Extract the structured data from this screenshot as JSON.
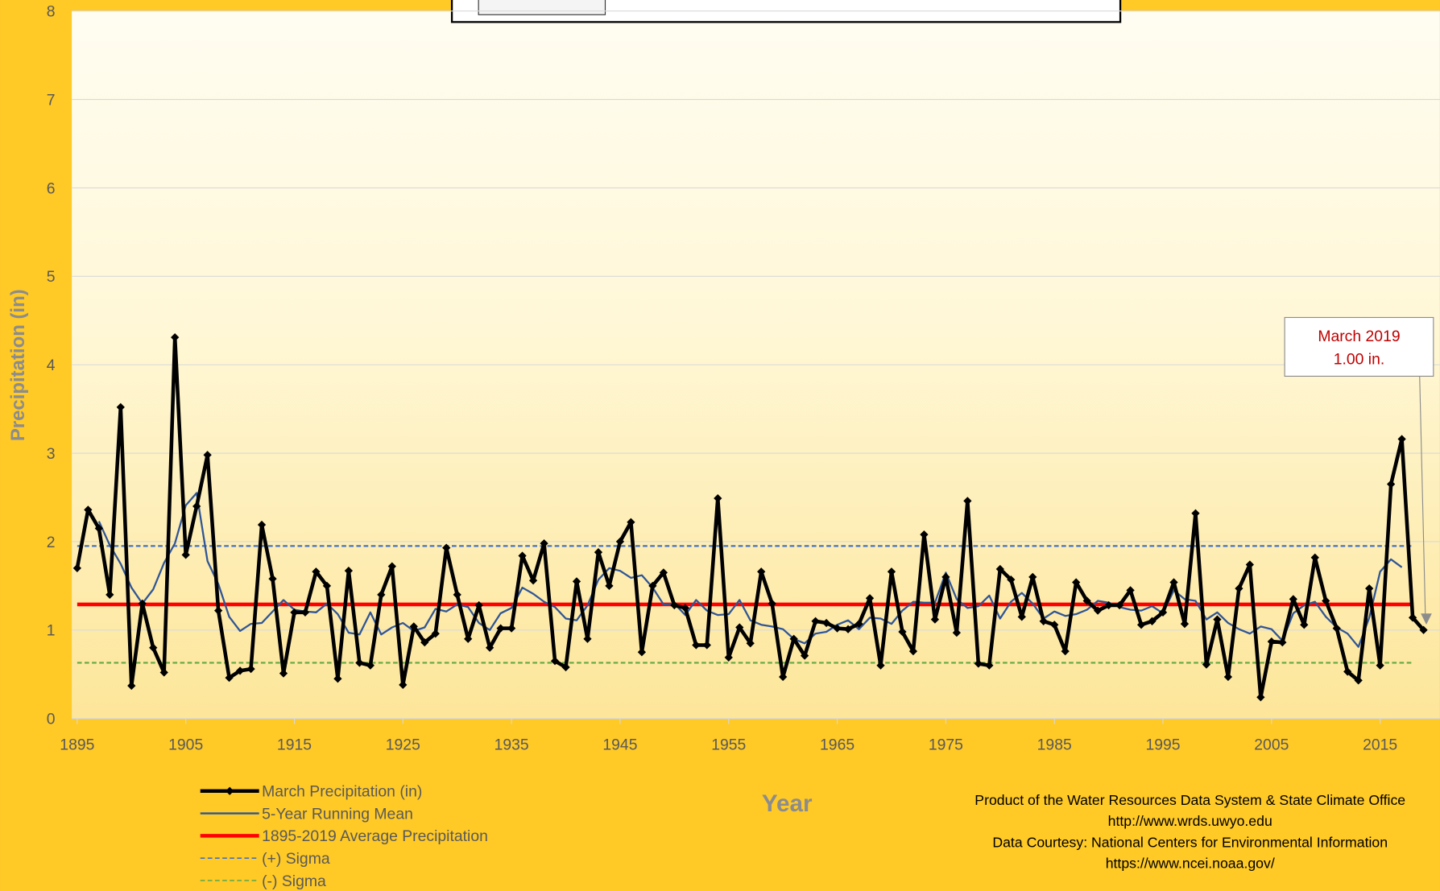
{
  "chart_data": {
    "type": "line",
    "x": [
      1895,
      1896,
      1897,
      1898,
      1899,
      1900,
      1901,
      1902,
      1903,
      1904,
      1905,
      1906,
      1907,
      1908,
      1909,
      1910,
      1911,
      1912,
      1913,
      1914,
      1915,
      1916,
      1917,
      1918,
      1919,
      1920,
      1921,
      1922,
      1923,
      1924,
      1925,
      1926,
      1927,
      1928,
      1929,
      1930,
      1931,
      1932,
      1933,
      1934,
      1935,
      1936,
      1937,
      1938,
      1939,
      1940,
      1941,
      1942,
      1943,
      1944,
      1945,
      1946,
      1947,
      1948,
      1949,
      1950,
      1951,
      1952,
      1953,
      1954,
      1955,
      1956,
      1957,
      1958,
      1959,
      1960,
      1961,
      1962,
      1963,
      1964,
      1965,
      1966,
      1967,
      1968,
      1969,
      1970,
      1971,
      1972,
      1973,
      1974,
      1975,
      1976,
      1977,
      1978,
      1979,
      1980,
      1981,
      1982,
      1983,
      1984,
      1985,
      1986,
      1987,
      1988,
      1989,
      1990,
      1991,
      1992,
      1993,
      1994,
      1995,
      1996,
      1997,
      1998,
      1999,
      2000,
      2001,
      2002,
      2003,
      2004,
      2005,
      2006,
      2007,
      2008,
      2009,
      2010,
      2011,
      2012,
      2013,
      2014,
      2015,
      2016,
      2017,
      2018,
      2019
    ],
    "series": [
      {
        "name": "March Precipitation (in)",
        "color": "#000000",
        "markers": true,
        "values": [
          1.7,
          2.36,
          2.15,
          1.4,
          3.52,
          0.37,
          1.3,
          0.8,
          0.52,
          4.31,
          1.85,
          2.4,
          2.98,
          1.22,
          0.46,
          0.54,
          0.56,
          2.19,
          1.58,
          0.51,
          1.2,
          1.2,
          1.66,
          1.5,
          0.45,
          1.67,
          0.63,
          0.6,
          1.4,
          1.72,
          0.38,
          1.04,
          0.86,
          0.96,
          1.93,
          1.4,
          0.9,
          1.28,
          0.8,
          1.02,
          1.02,
          1.84,
          1.56,
          1.98,
          0.65,
          0.58,
          1.55,
          0.9,
          1.88,
          1.5,
          2.0,
          2.22,
          0.75,
          1.5,
          1.65,
          1.28,
          1.25,
          0.83,
          0.83,
          2.49,
          0.69,
          1.03,
          0.85,
          1.66,
          1.3,
          0.47,
          0.9,
          0.71,
          1.1,
          1.08,
          1.02,
          1.01,
          1.07,
          1.36,
          0.6,
          1.66,
          0.98,
          0.76,
          2.08,
          1.12,
          1.6,
          0.97,
          2.46,
          0.62,
          0.6,
          1.69,
          1.57,
          1.15,
          1.6,
          1.1,
          1.06,
          0.76,
          1.54,
          1.33,
          1.22,
          1.28,
          1.28,
          1.45,
          1.06,
          1.1,
          1.2,
          1.54,
          1.07,
          2.32,
          0.61,
          1.12,
          0.47,
          1.47,
          1.74,
          0.24,
          0.87,
          0.86,
          1.35,
          1.06,
          1.82,
          1.33,
          1.02,
          0.53,
          0.43,
          1.47,
          0.6,
          2.65,
          3.16,
          1.14,
          1.0
        ]
      },
      {
        "name": "5-Year Running Mean",
        "color": "#2f5597",
        "values": [
          null,
          null,
          2.23,
          1.96,
          1.75,
          1.48,
          1.3,
          1.46,
          1.76,
          1.98,
          2.41,
          2.55,
          1.78,
          1.52,
          1.15,
          0.99,
          1.07,
          1.08,
          1.21,
          1.34,
          1.23,
          1.21,
          1.2,
          1.3,
          1.18,
          0.97,
          0.95,
          1.2,
          0.95,
          1.03,
          1.08,
          0.99,
          1.03,
          1.24,
          1.21,
          1.29,
          1.26,
          1.08,
          1.0,
          1.19,
          1.25,
          1.48,
          1.41,
          1.32,
          1.26,
          1.13,
          1.11,
          1.28,
          1.57,
          1.7,
          1.67,
          1.59,
          1.62,
          1.48,
          1.29,
          1.3,
          1.17,
          1.34,
          1.22,
          1.17,
          1.18,
          1.34,
          1.11,
          1.06,
          1.04,
          1.01,
          0.9,
          0.85,
          0.96,
          0.98,
          1.06,
          1.11,
          1.01,
          1.14,
          1.13,
          1.07,
          1.22,
          1.32,
          1.31,
          1.31,
          1.65,
          1.35,
          1.25,
          1.27,
          1.39,
          1.13,
          1.32,
          1.42,
          1.3,
          1.13,
          1.21,
          1.16,
          1.18,
          1.23,
          1.33,
          1.31,
          1.26,
          1.23,
          1.22,
          1.27,
          1.19,
          1.45,
          1.35,
          1.33,
          1.12,
          1.2,
          1.08,
          1.01,
          0.96,
          1.04,
          1.01,
          0.88,
          1.19,
          1.28,
          1.32,
          1.15,
          1.03,
          0.96,
          0.81,
          1.14,
          1.66,
          1.8,
          1.71,
          null,
          null
        ]
      },
      {
        "name": "1895-2019 Average Precipitation",
        "color": "#ff0000",
        "value": 1.29
      },
      {
        "name": "(+) Sigma",
        "color": "#4472c4",
        "dashed": true,
        "value": 1.95
      },
      {
        "name": "(-) Sigma",
        "color": "#70ad47",
        "dashed": true,
        "value": 0.63
      }
    ],
    "xlabel": "Year",
    "ylabel": "Precipitation (in)",
    "xlim": [
      1894.5,
      2020.5
    ],
    "xticks": [
      1895,
      1905,
      1915,
      1925,
      1935,
      1945,
      1955,
      1965,
      1975,
      1985,
      1995,
      2005,
      2015
    ],
    "ylim": [
      0,
      8
    ],
    "yticks": [
      0,
      1,
      2,
      3,
      4,
      5,
      6,
      7,
      8
    ],
    "grid": true,
    "annotation": [
      "March 2019",
      "1.00 in."
    ],
    "credits": [
      "Product of the Water Resources Data System & State Climate Office",
      "http://www.wrds.uwyo.edu",
      "Data Courtesy: National Centers for Environmental Information",
      "https://www.ncei.noaa.gov/"
    ]
  }
}
